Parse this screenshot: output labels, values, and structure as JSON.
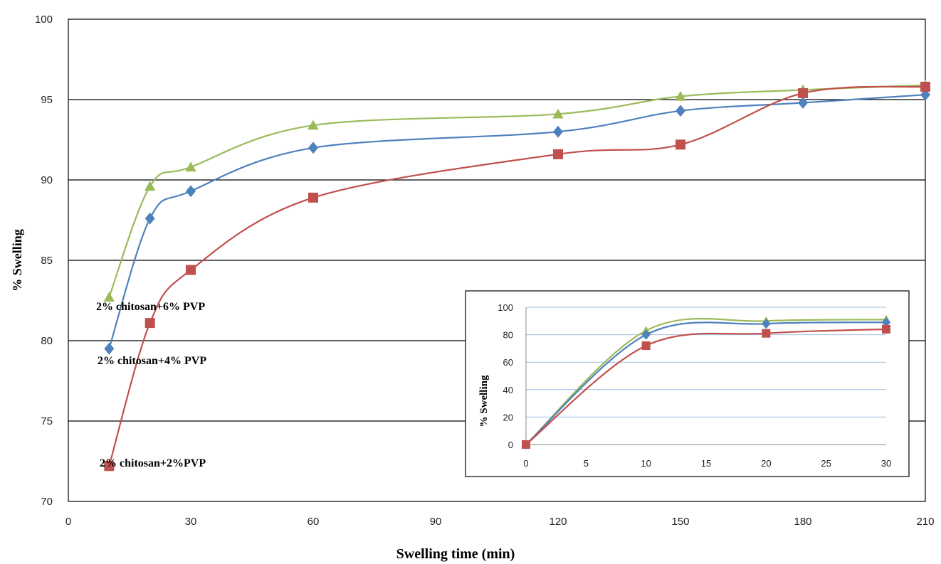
{
  "chart_data": [
    {
      "type": "line",
      "xlabel": "Swelling time (min)",
      "ylabel": "% Swelling",
      "xlim": [
        0,
        210
      ],
      "ylim": [
        70,
        100
      ],
      "xticks": [
        0,
        30,
        60,
        90,
        120,
        150,
        180,
        210
      ],
      "yticks": [
        70,
        75,
        80,
        85,
        90,
        95,
        100
      ],
      "grid": "horizontal",
      "smooth": true,
      "series": [
        {
          "name": "2% chitosan+6% PVP",
          "color": "#9BBB59",
          "marker": "triangle",
          "x": [
            10,
            20,
            30,
            60,
            120,
            150,
            180,
            210
          ],
          "y": [
            82.7,
            89.6,
            90.8,
            93.4,
            94.1,
            95.2,
            95.6,
            95.9
          ]
        },
        {
          "name": "2% chitosan+4%  PVP",
          "color": "#4F81BD",
          "marker": "diamond",
          "x": [
            10,
            20,
            30,
            60,
            120,
            150,
            180,
            210
          ],
          "y": [
            79.5,
            87.6,
            89.3,
            92.0,
            93.0,
            94.3,
            94.8,
            95.3
          ]
        },
        {
          "name": "2% chitosan+2%PVP",
          "color": "#C0504D",
          "marker": "square",
          "x": [
            10,
            20,
            30,
            60,
            120,
            150,
            180,
            210
          ],
          "y": [
            72.2,
            81.1,
            84.4,
            88.9,
            91.6,
            92.2,
            95.4,
            95.8
          ]
        }
      ]
    },
    {
      "type": "line",
      "inset": true,
      "xlabel": "",
      "ylabel": "% Swelling",
      "xlim": [
        0,
        30
      ],
      "ylim": [
        0,
        100
      ],
      "xticks": [
        0,
        5,
        10,
        15,
        20,
        25,
        30
      ],
      "yticks": [
        0,
        20,
        40,
        60,
        80,
        100
      ],
      "grid": "horizontal",
      "smooth": true,
      "series": [
        {
          "color": "#9BBB59",
          "marker": "triangle",
          "x": [
            0,
            10,
            20,
            30
          ],
          "y": [
            0,
            83,
            90,
            91
          ]
        },
        {
          "color": "#4F81BD",
          "marker": "diamond",
          "x": [
            0,
            10,
            20,
            30
          ],
          "y": [
            0,
            80,
            88,
            89
          ]
        },
        {
          "color": "#C0504D",
          "marker": "square",
          "x": [
            0,
            10,
            20,
            30
          ],
          "y": [
            0,
            72,
            81,
            84
          ]
        }
      ]
    }
  ]
}
